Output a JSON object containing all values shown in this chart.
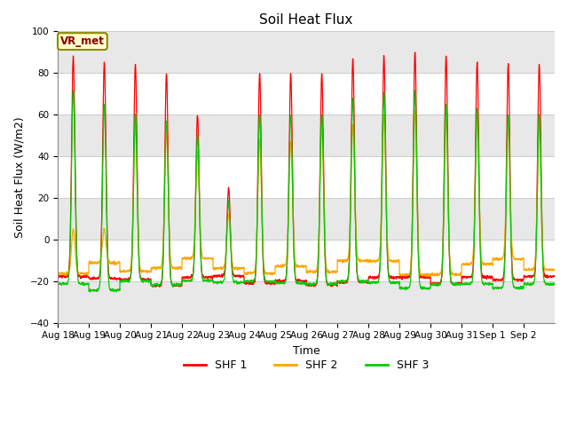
{
  "title": "Soil Heat Flux",
  "xlabel": "Time",
  "ylabel": "Soil Heat Flux (W/m2)",
  "ylim": [
    -40,
    100
  ],
  "yticks": [
    -40,
    -20,
    0,
    20,
    40,
    60,
    80,
    100
  ],
  "colors": {
    "SHF 1": "#ff0000",
    "SHF 2": "#ffa500",
    "SHF 3": "#00cc00"
  },
  "legend_label": "VR_met",
  "background_color": "#ffffff",
  "plot_bg_color": "#ffffff",
  "n_days": 16,
  "start_day": 18,
  "title_fontsize": 11,
  "axis_label_fontsize": 9,
  "tick_fontsize": 7.5,
  "shf1_peaks": [
    88,
    85,
    84,
    80,
    60,
    25,
    80,
    80,
    80,
    87,
    88,
    90,
    88,
    85,
    84,
    84
  ],
  "shf2_peaks": [
    0,
    0,
    55,
    52,
    42,
    12,
    48,
    47,
    55,
    55,
    60,
    62,
    58,
    58,
    56,
    55
  ],
  "shf3_peaks": [
    72,
    65,
    60,
    57,
    50,
    18,
    60,
    60,
    60,
    68,
    70,
    71,
    65,
    63,
    60,
    60
  ],
  "night_shf1": -20,
  "night_shf2": -13,
  "night_shf3": -22,
  "pts_per_day": 144
}
